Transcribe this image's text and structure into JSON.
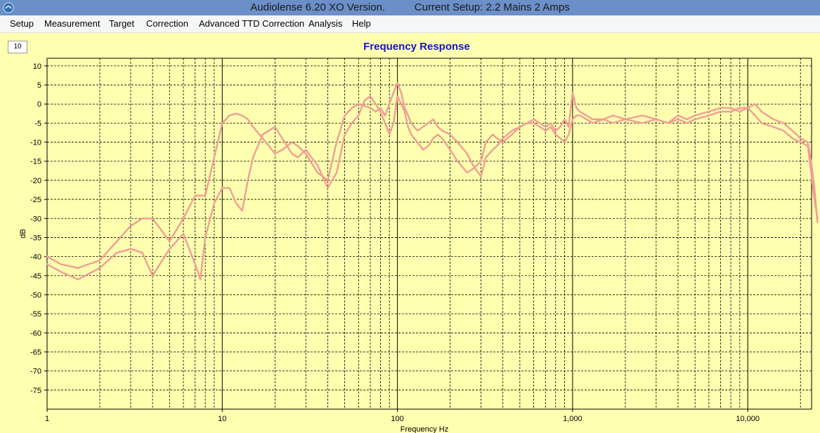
{
  "window": {
    "app_title": "Audiolense 6.20 XO Version.",
    "setup_title": "Current Setup: 2.2 Mains 2 Amps",
    "icon": "audiolense-app-icon"
  },
  "menu": {
    "items": [
      {
        "label": "Setup"
      },
      {
        "label": "Measurement"
      },
      {
        "label": "Target"
      },
      {
        "label": "Correction"
      },
      {
        "label": "Advanced TTD Correction"
      },
      {
        "label": "Analysis"
      },
      {
        "label": "Help"
      }
    ]
  },
  "zoom_box": {
    "value": "10"
  },
  "chart_data": {
    "type": "line",
    "title": "Frequency Response",
    "xlabel": "Frequency Hz",
    "ylabel": "dB",
    "xscale": "log",
    "xlim": [
      1,
      25000
    ],
    "ylim": [
      -80,
      12
    ],
    "x_ticks": [
      1,
      10,
      100,
      1000,
      10000
    ],
    "x_tick_labels": [
      "1",
      "10",
      "100",
      "1,000",
      "10,000"
    ],
    "y_ticks": [
      10,
      5,
      0,
      -5,
      -10,
      -15,
      -20,
      -25,
      -30,
      -35,
      -40,
      -45,
      -50,
      -55,
      -60,
      -65,
      -70,
      -75
    ],
    "y_tick_labels": [
      "10",
      "5",
      "0",
      "-5",
      "-10",
      "-15",
      "-20",
      "-25",
      "-30",
      "-35",
      "-40",
      "-45",
      "-50",
      "-55",
      "-60",
      "-65",
      "-70",
      "-75"
    ],
    "grid": true,
    "colors": {
      "background": "#ffffb0",
      "series": "#f29c96",
      "title": "#1414c8"
    },
    "series": [
      {
        "x": [
          1,
          1.2,
          1.5,
          2,
          2.5,
          3,
          3.5,
          4,
          5,
          6,
          7,
          8,
          9,
          10,
          11,
          12,
          13,
          14,
          15,
          17,
          20,
          22,
          25,
          27,
          30,
          35,
          40,
          45,
          50,
          55,
          60,
          65,
          70,
          75,
          80,
          85,
          90,
          95,
          100,
          105,
          110,
          115,
          120,
          130,
          140,
          150,
          160,
          170,
          180,
          200,
          220,
          250,
          270,
          300,
          320,
          350,
          370,
          400,
          450,
          500,
          550,
          600,
          650,
          700,
          750,
          800,
          850,
          900,
          950,
          1000,
          1050,
          1100,
          1200,
          1300,
          1500,
          1700,
          2000,
          2500,
          3000,
          3500,
          4000,
          4500,
          5000,
          6000,
          7000,
          8000,
          9000,
          10000,
          11000,
          12000,
          14000,
          16000,
          18000,
          20000,
          22000,
          23000,
          24000,
          25000
        ],
        "y": [
          -40,
          -42,
          -43,
          -41,
          -36,
          -32,
          -30,
          -30,
          -36,
          -30,
          -24,
          -24,
          -14,
          -5,
          -3,
          -2.5,
          -3,
          -4,
          -6,
          -9,
          -13,
          -12,
          -10,
          -11,
          -13,
          -18,
          -20,
          -10,
          -3,
          -1,
          0,
          -0.5,
          -1,
          -2,
          -1,
          -3,
          0,
          3,
          5.5,
          3,
          -1,
          -3,
          -5,
          -7,
          -6,
          -5,
          -4,
          -6,
          -7,
          -8,
          -10,
          -13,
          -16,
          -19,
          -14,
          -12,
          -11,
          -9,
          -7,
          -6,
          -5,
          -4,
          -5,
          -6,
          -5,
          -7,
          -6,
          -4,
          -6,
          3,
          -1,
          -2,
          -3,
          -4,
          -4,
          -3,
          -4,
          -3,
          -4,
          -5,
          -3,
          -4,
          -3,
          -2,
          -1,
          -1,
          -2,
          -1,
          0,
          -2,
          -4,
          -5,
          -7,
          -9,
          -10,
          -15,
          -22,
          -31
        ]
      },
      {
        "x": [
          1,
          1.2,
          1.5,
          2,
          2.5,
          3,
          3.5,
          4,
          5,
          6,
          7,
          7.5,
          8,
          9,
          10,
          11,
          12,
          13,
          14,
          15,
          17,
          20,
          22,
          25,
          27,
          30,
          35,
          40,
          45,
          50,
          55,
          60,
          65,
          70,
          75,
          80,
          85,
          90,
          95,
          100,
          105,
          110,
          115,
          120,
          130,
          140,
          150,
          160,
          170,
          180,
          200,
          220,
          250,
          270,
          300,
          320,
          350,
          370,
          400,
          450,
          500,
          550,
          600,
          650,
          700,
          750,
          800,
          850,
          900,
          950,
          1000,
          1050,
          1100,
          1200,
          1300,
          1500,
          1700,
          2000,
          2500,
          3000,
          3500,
          4000,
          4500,
          5000,
          6000,
          7000,
          8000,
          9000,
          10000,
          11000,
          12000,
          14000,
          16000,
          18000,
          20000,
          22000,
          23000,
          24000,
          25000
        ],
        "y": [
          -42,
          -44,
          -46,
          -43,
          -39,
          -38,
          -39,
          -45,
          -38,
          -34,
          -42,
          -46,
          -35,
          -26,
          -22,
          -22,
          -26,
          -28,
          -20,
          -14,
          -8,
          -6,
          -9,
          -13,
          -14,
          -12,
          -16,
          -22,
          -18,
          -8,
          -5,
          -3,
          1,
          2,
          0,
          -2,
          -5,
          -8,
          -5,
          2,
          0,
          -2,
          -6,
          -8,
          -10,
          -12,
          -11,
          -9,
          -8,
          -9,
          -12,
          -15,
          -18,
          -17,
          -15,
          -10,
          -8,
          -9,
          -10,
          -8,
          -6,
          -5,
          -5,
          -6,
          -7,
          -6,
          -8,
          -9,
          -10,
          -8,
          -4,
          -3,
          -3,
          -4,
          -5,
          -4,
          -5,
          -4,
          -5,
          -4,
          -5,
          -4,
          -5,
          -4,
          -3,
          -2,
          -2,
          -1,
          -1,
          -3,
          -5,
          -6,
          -7,
          -9,
          -10,
          -11,
          -18,
          -25,
          -30
        ]
      }
    ]
  }
}
